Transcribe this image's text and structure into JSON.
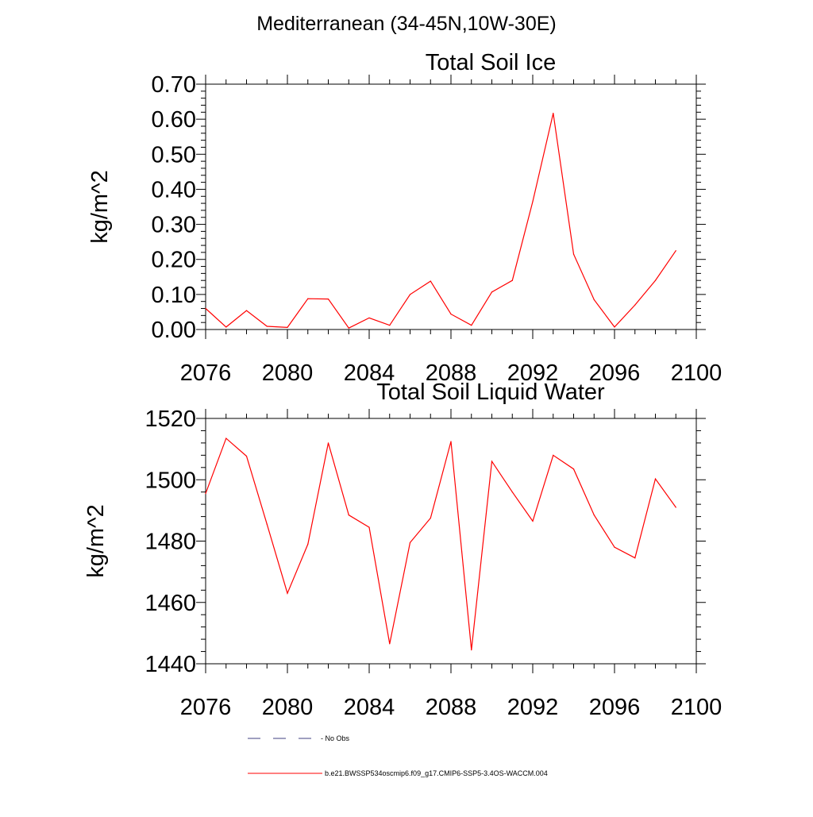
{
  "figure": {
    "title": "Mediterranean (34-45N,10W-30E)"
  },
  "chart_data": [
    {
      "type": "line",
      "title": "Total Soil Ice",
      "xlabel": "",
      "ylabel": "kg/m^2",
      "xlim": [
        2076,
        2100
      ],
      "ylim": [
        0,
        0.7
      ],
      "xticks": [
        "2076",
        "2080",
        "2084",
        "2088",
        "2092",
        "2096",
        "2100"
      ],
      "yticks": [
        "0.00",
        "0.10",
        "0.20",
        "0.30",
        "0.40",
        "0.50",
        "0.60",
        "0.70"
      ],
      "grid": false,
      "series": [
        {
          "name": "b.e21.BWSSP534oscmip6.f09_g17.CMIP6-SSP5-3.4OS-WACCM.004",
          "color": "#ff0000",
          "x": [
            2076,
            2077,
            2078,
            2079,
            2080,
            2081,
            2082,
            2083,
            2084,
            2085,
            2086,
            2087,
            2088,
            2089,
            2090,
            2091,
            2092,
            2093,
            2094,
            2095,
            2096,
            2097,
            2098,
            2099
          ],
          "y": [
            0.06,
            0.007,
            0.054,
            0.009,
            0.006,
            0.088,
            0.087,
            0.004,
            0.033,
            0.012,
            0.1,
            0.138,
            0.044,
            0.012,
            0.107,
            0.14,
            0.365,
            0.617,
            0.215,
            0.085,
            0.007,
            0.07,
            0.14,
            0.225
          ]
        }
      ]
    },
    {
      "type": "line",
      "title": "Total Soil Liquid Water",
      "xlabel": "",
      "ylabel": "kg/m^2",
      "xlim": [
        2076,
        2100
      ],
      "ylim": [
        1440,
        1520
      ],
      "xticks": [
        "2076",
        "2080",
        "2084",
        "2088",
        "2092",
        "2096",
        "2100"
      ],
      "yticks": [
        "1440",
        "1460",
        "1480",
        "1500",
        "1520"
      ],
      "grid": false,
      "series": [
        {
          "name": "b.e21.BWSSP534oscmip6.f09_g17.CMIP6-SSP5-3.4OS-WACCM.004",
          "color": "#ff0000",
          "x": [
            2076,
            2077,
            2078,
            2079,
            2080,
            2081,
            2082,
            2083,
            2084,
            2085,
            2086,
            2087,
            2088,
            2089,
            2090,
            2091,
            2092,
            2093,
            2094,
            2095,
            2096,
            2097,
            2098,
            2099
          ],
          "y": [
            1495.5,
            1513.5,
            1507.7,
            1485.5,
            1463.0,
            1479.0,
            1512.0,
            1488.5,
            1484.5,
            1446.5,
            1479.5,
            1487.5,
            1512.5,
            1444.5,
            1506.0,
            1496.0,
            1486.5,
            1508.0,
            1503.5,
            1488.5,
            1478.0,
            1474.5,
            1500.3,
            1491.0
          ]
        }
      ]
    }
  ],
  "legend": {
    "placement": "bottom",
    "entries": [
      {
        "label": "No Obs",
        "color": "#404080",
        "style": "dashed"
      },
      {
        "label": "b.e21.BWSSP534oscmip6.f09_g17.CMIP6-SSP5-3.4OS-WACCM.004",
        "color": "#ff0000",
        "style": "solid"
      }
    ]
  }
}
